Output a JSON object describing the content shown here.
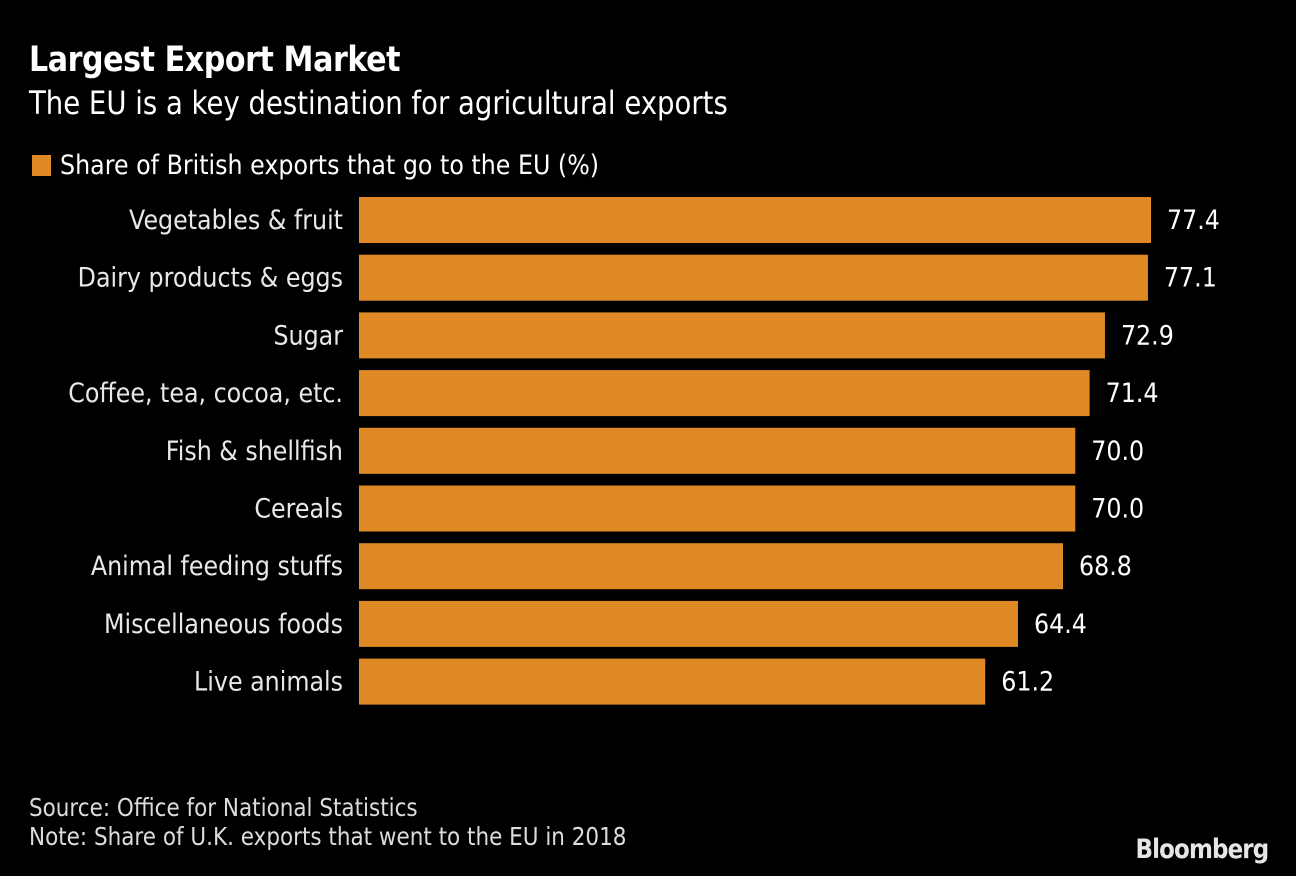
{
  "header": {
    "title": "Largest Export Market",
    "subtitle": "The EU is a key destination for agricultural exports"
  },
  "footer": {
    "source": "Source: Office for National Statistics",
    "note": "Note: Share of U.K. exports that went to the EU in 2018",
    "brand": "Bloomberg"
  },
  "colors": {
    "bar": "#df8a25",
    "background": "#000000",
    "text": "#ffffff"
  },
  "chart_data": {
    "type": "bar",
    "orientation": "horizontal",
    "title": "Largest Export Market",
    "subtitle": "The EU is a key destination for agricultural exports",
    "legend": {
      "entries": [
        "Share of British exports that go to the EU (%)"
      ],
      "placement": "top-left"
    },
    "categories": [
      "Vegetables & fruit",
      "Dairy products & eggs",
      "Sugar",
      "Coffee, tea, cocoa, etc.",
      "Fish & shellfish",
      "Cereals",
      "Animal feeding stuffs",
      "Miscellaneous foods",
      "Live animals"
    ],
    "series": [
      {
        "name": "Share of British exports that go to the EU (%)",
        "values": [
          77.4,
          77.1,
          72.9,
          71.4,
          70.0,
          70.0,
          68.8,
          64.4,
          61.2
        ],
        "labels": [
          "77.4",
          "77.1",
          "72.9",
          "71.4",
          "70.0",
          "70.0",
          "68.8",
          "64.4",
          "61.2"
        ]
      }
    ],
    "xlim": [
      0,
      77.4
    ],
    "xlabel": "",
    "ylabel": "",
    "grid": false
  }
}
